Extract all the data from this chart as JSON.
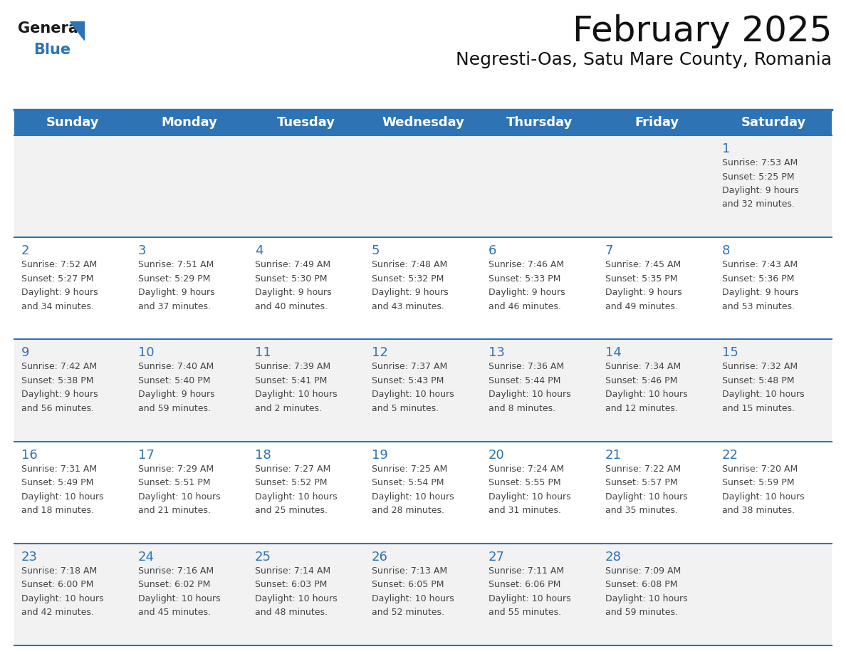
{
  "title": "February 2025",
  "subtitle": "Negresti-Oas, Satu Mare County, Romania",
  "header_color": "#2E74B5",
  "header_text_color": "#FFFFFF",
  "day_names": [
    "Sunday",
    "Monday",
    "Tuesday",
    "Wednesday",
    "Thursday",
    "Friday",
    "Saturday"
  ],
  "bg_color": "#FFFFFF",
  "grid_color": "#2E74B5",
  "day_num_color": "#2E74B5",
  "info_color": "#444444",
  "row_colors": [
    "#F2F2F2",
    "#FFFFFF",
    "#F2F2F2",
    "#FFFFFF",
    "#F2F2F2"
  ],
  "calendar": [
    [
      null,
      null,
      null,
      null,
      null,
      null,
      1
    ],
    [
      2,
      3,
      4,
      5,
      6,
      7,
      8
    ],
    [
      9,
      10,
      11,
      12,
      13,
      14,
      15
    ],
    [
      16,
      17,
      18,
      19,
      20,
      21,
      22
    ],
    [
      23,
      24,
      25,
      26,
      27,
      28,
      null
    ]
  ],
  "cell_data": {
    "1": {
      "sunrise": "7:53 AM",
      "sunset": "5:25 PM",
      "daylight_l1": "9 hours",
      "daylight_l2": "and 32 minutes."
    },
    "2": {
      "sunrise": "7:52 AM",
      "sunset": "5:27 PM",
      "daylight_l1": "9 hours",
      "daylight_l2": "and 34 minutes."
    },
    "3": {
      "sunrise": "7:51 AM",
      "sunset": "5:29 PM",
      "daylight_l1": "9 hours",
      "daylight_l2": "and 37 minutes."
    },
    "4": {
      "sunrise": "7:49 AM",
      "sunset": "5:30 PM",
      "daylight_l1": "9 hours",
      "daylight_l2": "and 40 minutes."
    },
    "5": {
      "sunrise": "7:48 AM",
      "sunset": "5:32 PM",
      "daylight_l1": "9 hours",
      "daylight_l2": "and 43 minutes."
    },
    "6": {
      "sunrise": "7:46 AM",
      "sunset": "5:33 PM",
      "daylight_l1": "9 hours",
      "daylight_l2": "and 46 minutes."
    },
    "7": {
      "sunrise": "7:45 AM",
      "sunset": "5:35 PM",
      "daylight_l1": "9 hours",
      "daylight_l2": "and 49 minutes."
    },
    "8": {
      "sunrise": "7:43 AM",
      "sunset": "5:36 PM",
      "daylight_l1": "9 hours",
      "daylight_l2": "and 53 minutes."
    },
    "9": {
      "sunrise": "7:42 AM",
      "sunset": "5:38 PM",
      "daylight_l1": "9 hours",
      "daylight_l2": "and 56 minutes."
    },
    "10": {
      "sunrise": "7:40 AM",
      "sunset": "5:40 PM",
      "daylight_l1": "9 hours",
      "daylight_l2": "and 59 minutes."
    },
    "11": {
      "sunrise": "7:39 AM",
      "sunset": "5:41 PM",
      "daylight_l1": "10 hours",
      "daylight_l2": "and 2 minutes."
    },
    "12": {
      "sunrise": "7:37 AM",
      "sunset": "5:43 PM",
      "daylight_l1": "10 hours",
      "daylight_l2": "and 5 minutes."
    },
    "13": {
      "sunrise": "7:36 AM",
      "sunset": "5:44 PM",
      "daylight_l1": "10 hours",
      "daylight_l2": "and 8 minutes."
    },
    "14": {
      "sunrise": "7:34 AM",
      "sunset": "5:46 PM",
      "daylight_l1": "10 hours",
      "daylight_l2": "and 12 minutes."
    },
    "15": {
      "sunrise": "7:32 AM",
      "sunset": "5:48 PM",
      "daylight_l1": "10 hours",
      "daylight_l2": "and 15 minutes."
    },
    "16": {
      "sunrise": "7:31 AM",
      "sunset": "5:49 PM",
      "daylight_l1": "10 hours",
      "daylight_l2": "and 18 minutes."
    },
    "17": {
      "sunrise": "7:29 AM",
      "sunset": "5:51 PM",
      "daylight_l1": "10 hours",
      "daylight_l2": "and 21 minutes."
    },
    "18": {
      "sunrise": "7:27 AM",
      "sunset": "5:52 PM",
      "daylight_l1": "10 hours",
      "daylight_l2": "and 25 minutes."
    },
    "19": {
      "sunrise": "7:25 AM",
      "sunset": "5:54 PM",
      "daylight_l1": "10 hours",
      "daylight_l2": "and 28 minutes."
    },
    "20": {
      "sunrise": "7:24 AM",
      "sunset": "5:55 PM",
      "daylight_l1": "10 hours",
      "daylight_l2": "and 31 minutes."
    },
    "21": {
      "sunrise": "7:22 AM",
      "sunset": "5:57 PM",
      "daylight_l1": "10 hours",
      "daylight_l2": "and 35 minutes."
    },
    "22": {
      "sunrise": "7:20 AM",
      "sunset": "5:59 PM",
      "daylight_l1": "10 hours",
      "daylight_l2": "and 38 minutes."
    },
    "23": {
      "sunrise": "7:18 AM",
      "sunset": "6:00 PM",
      "daylight_l1": "10 hours",
      "daylight_l2": "and 42 minutes."
    },
    "24": {
      "sunrise": "7:16 AM",
      "sunset": "6:02 PM",
      "daylight_l1": "10 hours",
      "daylight_l2": "and 45 minutes."
    },
    "25": {
      "sunrise": "7:14 AM",
      "sunset": "6:03 PM",
      "daylight_l1": "10 hours",
      "daylight_l2": "and 48 minutes."
    },
    "26": {
      "sunrise": "7:13 AM",
      "sunset": "6:05 PM",
      "daylight_l1": "10 hours",
      "daylight_l2": "and 52 minutes."
    },
    "27": {
      "sunrise": "7:11 AM",
      "sunset": "6:06 PM",
      "daylight_l1": "10 hours",
      "daylight_l2": "and 55 minutes."
    },
    "28": {
      "sunrise": "7:09 AM",
      "sunset": "6:08 PM",
      "daylight_l1": "10 hours",
      "daylight_l2": "and 59 minutes."
    }
  },
  "title_fontsize": 36,
  "subtitle_fontsize": 18,
  "header_fontsize": 13,
  "day_num_fontsize": 13,
  "info_fontsize": 9,
  "logo_general_color": "#1a1a1a",
  "logo_blue_color": "#2E74B5",
  "logo_triangle_color": "#2E74B5"
}
